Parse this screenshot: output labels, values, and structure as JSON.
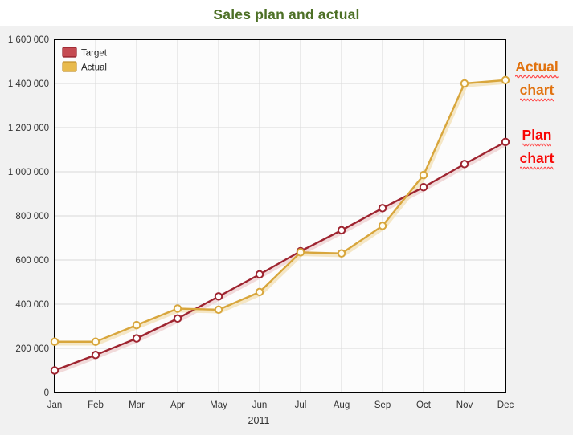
{
  "title": "Sales plan and actual",
  "x_axis": {
    "months": [
      "Jan",
      "Feb",
      "Mar",
      "Apr",
      "May",
      "Jun",
      "Jul",
      "Aug",
      "Sep",
      "Oct",
      "Nov",
      "Dec"
    ],
    "year_label": "2011"
  },
  "y_axis": {
    "ticks": [
      {
        "value": 0,
        "label": "0"
      },
      {
        "value": 200000,
        "label": "200 000"
      },
      {
        "value": 400000,
        "label": "400 000"
      },
      {
        "value": 600000,
        "label": "600 000"
      },
      {
        "value": 800000,
        "label": "800 000"
      },
      {
        "value": 1000000,
        "label": "1 000 000"
      },
      {
        "value": 1200000,
        "label": "1 200 000"
      },
      {
        "value": 1400000,
        "label": "1 400 000"
      },
      {
        "value": 1600000,
        "label": "1 600 000"
      }
    ]
  },
  "legend": [
    {
      "label": "Target",
      "fill": "#C54B52",
      "stroke": "#8E1B26"
    },
    {
      "label": "Actual",
      "fill": "#E8BA4D",
      "stroke": "#C3912C"
    }
  ],
  "annotations": [
    {
      "name": "actual-chart",
      "lines": [
        "Actual",
        "chart"
      ],
      "color": "#E1720F"
    },
    {
      "name": "plan-chart",
      "lines": [
        "Plan",
        "chart"
      ],
      "color": "#F80604"
    }
  ],
  "colors": {
    "title": "#4D7026",
    "widget_background": "#F1F1F1",
    "plot_background": "#FCFCFC",
    "grid": "#D9D9D9",
    "plot_border": "#000000",
    "axis_text": "#333333",
    "squiggle": "#FF4A4A"
  },
  "chart_data": {
    "type": "line",
    "title": "Sales plan and actual",
    "xlabel": "2011",
    "ylabel": "",
    "ylim": [
      0,
      1600000
    ],
    "y_tick_step": 200000,
    "grid": true,
    "legend_position": "top-left",
    "x": [
      "Jan",
      "Feb",
      "Mar",
      "Apr",
      "May",
      "Jun",
      "Jul",
      "Aug",
      "Sep",
      "Oct",
      "Nov",
      "Dec"
    ],
    "series": [
      {
        "name": "Target",
        "color": "#9E2430",
        "glow": "#EFD3D3",
        "marker_fill": "#FFFFFF",
        "values": [
          100000,
          170000,
          245000,
          335000,
          435000,
          535000,
          640000,
          735000,
          835000,
          930000,
          1035000,
          1135000
        ]
      },
      {
        "name": "Actual",
        "color": "#D8A63C",
        "glow": "#F3E3BC",
        "marker_fill": "#FFFDF2",
        "values": [
          230000,
          230000,
          305000,
          380000,
          375000,
          455000,
          635000,
          630000,
          755000,
          985000,
          1400000,
          1415000
        ]
      }
    ]
  }
}
